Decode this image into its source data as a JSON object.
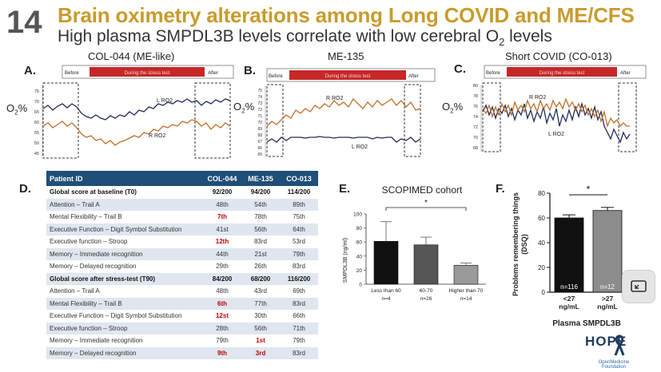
{
  "slide": {
    "number": "14",
    "title": "Brain oximetry alterations among Long COVID and ME/CFS",
    "subtitle_pre": "High plasma SMPDL3B levels correlate with low cerebral O",
    "subtitle_sub": "2",
    "subtitle_post": " levels",
    "accent_color": "#c99b2c"
  },
  "oximetry_panels": [
    {
      "letter": "A.",
      "title": "COL-044 (ME-like)",
      "bar_before": "Before",
      "bar_during": "During the stress test",
      "bar_after": "After",
      "ylabel_main": "O",
      "ylabel_sub": "2",
      "ylabel_post": "%",
      "yticks": [
        "75",
        "70",
        "65",
        "60",
        "55",
        "50",
        "45"
      ],
      "series_labels": [
        "L RO2",
        "R RO2"
      ]
    },
    {
      "letter": "B.",
      "title": "ME-135",
      "bar_before": "Before",
      "bar_during": "During the stress test",
      "bar_after": "After",
      "ylabel_main": "O",
      "ylabel_sub": "2",
      "ylabel_post": "%",
      "yticks": [
        "75",
        "74",
        "73",
        "72",
        "71",
        "70",
        "69",
        "68",
        "67",
        "66",
        "65"
      ],
      "series_labels": [
        "R RO2",
        "L RO2"
      ]
    },
    {
      "letter": "C.",
      "title": "Short COVID (CO-013)",
      "bar_before": "Before",
      "bar_during": "During the stress test",
      "bar_after": "After",
      "ylabel_main": "O",
      "ylabel_sub": "2",
      "ylabel_post": "%",
      "yticks": [
        "80",
        "78",
        "76",
        "74",
        "72",
        "70",
        "68"
      ],
      "series_labels": [
        "R RO2",
        "L RO2"
      ]
    }
  ],
  "table_panel": {
    "letter": "D.",
    "headers": [
      "Patient ID",
      "COL-044",
      "ME-135",
      "CO-013"
    ],
    "rows": [
      {
        "label": "Global score at baseline (T0)",
        "c1": "92/200",
        "c2": "94/200",
        "c3": "114/200",
        "global": true
      },
      {
        "label": "Attention – Trail A",
        "c1": "48th",
        "c2": "54th",
        "c3": "89th"
      },
      {
        "label": "Mental Flexibility – Trail B",
        "c1": "7th",
        "c2": "78th",
        "c3": "75th",
        "red1": true
      },
      {
        "label": "Executive Function – Digit Symbol Substitution",
        "c1": "41st",
        "c2": "56th",
        "c3": "64th"
      },
      {
        "label": "Executive function – Stroop",
        "c1": "12th",
        "c2": "83rd",
        "c3": "53rd",
        "red1": true
      },
      {
        "label": "Memory – Immediate recognition",
        "c1": "44th",
        "c2": "21st",
        "c3": "79th"
      },
      {
        "label": "Memory – Delayed recognition",
        "c1": "29th",
        "c2": "26th",
        "c3": "83rd"
      },
      {
        "label": "Global score after stress-test (T90)",
        "c1": "84/200",
        "c2": "68/200",
        "c3": "116/200",
        "global": true
      },
      {
        "label": "Attention – Trail A",
        "c1": "48th",
        "c2": "43rd",
        "c3": "69th"
      },
      {
        "label": "Mental Flexibility – Trail B",
        "c1": "6th",
        "c2": "77th",
        "c3": "83rd",
        "red1": true
      },
      {
        "label": "Executive Function – Digit Symbol Substitution",
        "c1": "12st",
        "c2": "30th",
        "c3": "66th",
        "red1": true
      },
      {
        "label": "Executive function – Stroop",
        "c1": "28th",
        "c2": "56th",
        "c3": "71th"
      },
      {
        "label": "Memory – Immediate recognition",
        "c1": "79th",
        "c2": "1st",
        "c3": "79th",
        "red2": true
      },
      {
        "label": "Memory – Delayed recognition",
        "c1": "9th",
        "c2": "3rd",
        "c3": "83rd",
        "red1": true,
        "red2": true
      }
    ]
  },
  "chart_data": [
    {
      "type": "bar",
      "panel": "E.",
      "title": "SCOPIMED cohort",
      "ylabel": "SMPDL3B (ng/ml)",
      "categories": [
        "Less than 60",
        "60-70",
        "Higher than 70"
      ],
      "category_counts": [
        "n=4",
        "n=26",
        "n=14"
      ],
      "values": [
        61,
        56,
        27
      ],
      "errors": [
        28,
        11,
        3
      ],
      "yticks": [
        "0",
        "20",
        "40",
        "60",
        "80",
        "100"
      ],
      "ylim": [
        0,
        100
      ],
      "significance": "*",
      "bar_colors": [
        "#111111",
        "#555555",
        "#9a9a9a"
      ]
    },
    {
      "type": "bar",
      "panel": "F.",
      "ylabel_line1": "Problems remembering things",
      "ylabel_line2": "(DSQ)",
      "xlabel": "Plasma SMPDL3B",
      "categories": [
        [
          "<27",
          "ng/mL"
        ],
        [
          ">27",
          "ng/mL"
        ]
      ],
      "category_counts": [
        "n=116",
        "n=12"
      ],
      "values": [
        60,
        66
      ],
      "errors": [
        2.5,
        2.5
      ],
      "yticks": [
        "0",
        "20",
        "40",
        "60",
        "80"
      ],
      "ylim": [
        0,
        80
      ],
      "significance": "*",
      "bar_colors": [
        "#111111",
        "#8c8c8c"
      ]
    }
  ],
  "logo": {
    "name": "HOPE",
    "subtitle": "OpenMedicine Foundation"
  },
  "colors": {
    "navy": "#1f2d5a",
    "orange": "#c0702a",
    "red_bar": "#c62828",
    "table_header": "#1f4e79"
  }
}
